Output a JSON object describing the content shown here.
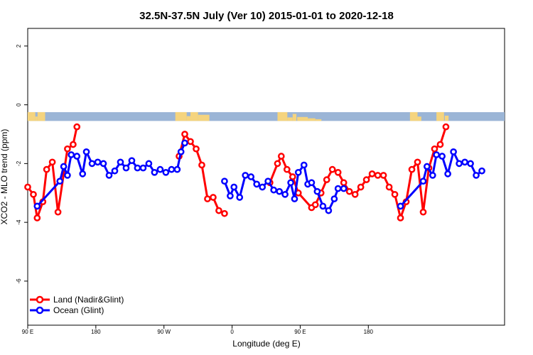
{
  "chart_data": {
    "type": "line",
    "title": "32.5N-37.5N July (Ver 10)   2015-01-01 to 2020-12-18",
    "xlabel": "Longitude (deg E)",
    "ylabel": "XCO2 - MLO trend (ppm)",
    "x_ticks": [
      "90 E",
      "180",
      "90 W",
      "0",
      "90 E",
      "180"
    ],
    "y_ticks": [
      "2",
      "0",
      "-2",
      "-4",
      "-6"
    ],
    "ylim": [
      -7.5,
      2.6
    ],
    "legend_position": "bottom-left",
    "series": [
      {
        "name": "Land (Nadir&Glint)",
        "color": "#ff0000",
        "segments": [
          [
            [
              90,
              -2.8
            ],
            [
              97.5,
              -3.05
            ],
            [
              102.5,
              -3.85
            ],
            [
              110,
              -3.3
            ],
            [
              115,
              -2.2
            ],
            [
              122.5,
              -1.95
            ],
            [
              130,
              -3.65
            ],
            [
              142.5,
              -1.5
            ],
            [
              150,
              -1.35
            ],
            [
              155,
              -0.75
            ]
          ],
          [
            [
              290,
              -1.75
            ],
            [
              297.5,
              -1.0
            ],
            [
              305,
              -1.25
            ],
            [
              312.5,
              -1.5
            ],
            [
              320,
              -2.05
            ],
            [
              327.5,
              -3.2
            ],
            [
              335,
              -3.15
            ],
            [
              342.5,
              -3.6
            ],
            [
              350,
              -3.7
            ]
          ],
          [
            [
              410,
              -2.65
            ],
            [
              420,
              -2.0
            ],
            [
              425,
              -1.75
            ],
            [
              432.5,
              -2.2
            ],
            [
              440,
              -2.45
            ],
            [
              447.5,
              -3.0
            ],
            [
              465,
              -3.5
            ],
            [
              470,
              -3.4
            ],
            [
              477.5,
              -3.0
            ],
            [
              485,
              -2.55
            ],
            [
              492.5,
              -2.2
            ],
            [
              500,
              -2.3
            ],
            [
              507.5,
              -2.65
            ],
            [
              515,
              -2.95
            ],
            [
              522.5,
              -3.05
            ],
            [
              530,
              -2.8
            ],
            [
              537.5,
              -2.55
            ],
            [
              545,
              -2.35
            ],
            [
              552.5,
              -2.4
            ],
            [
              560,
              -2.4
            ],
            [
              567.5,
              -2.8
            ],
            [
              575,
              -3.05
            ],
            [
              582.5,
              -3.85
            ],
            [
              590,
              -3.3
            ],
            [
              597.5,
              -2.2
            ],
            [
              605,
              -1.95
            ],
            [
              612.5,
              -3.65
            ],
            [
              620,
              -2.15
            ],
            [
              627.5,
              -1.5
            ],
            [
              635,
              -1.35
            ],
            [
              642.5,
              -0.75
            ]
          ]
        ]
      },
      {
        "name": "Ocean (Glint)",
        "color": "#0000ff",
        "segments": [
          [
            [
              102.5,
              -3.45
            ],
            [
              132.5,
              -2.6
            ],
            [
              137.5,
              -2.1
            ],
            [
              142.5,
              -2.4
            ],
            [
              147.5,
              -1.7
            ],
            [
              155,
              -1.75
            ],
            [
              162.5,
              -2.35
            ],
            [
              167.5,
              -1.6
            ],
            [
              175,
              -2.0
            ],
            [
              182.5,
              -1.95
            ],
            [
              190,
              -2.0
            ],
            [
              197.5,
              -2.4
            ],
            [
              205,
              -2.25
            ],
            [
              212.5,
              -1.95
            ],
            [
              220,
              -2.15
            ],
            [
              227.5,
              -1.9
            ],
            [
              235,
              -2.15
            ],
            [
              242.5,
              -2.15
            ],
            [
              250,
              -2.0
            ],
            [
              257.5,
              -2.3
            ],
            [
              265,
              -2.2
            ],
            [
              272.5,
              -2.3
            ],
            [
              280,
              -2.2
            ],
            [
              287.5,
              -2.2
            ],
            [
              292.5,
              -1.6
            ],
            [
              297.5,
              -1.3
            ]
          ],
          [
            [
              350,
              -2.6
            ],
            [
              357.5,
              -3.1
            ],
            [
              362.5,
              -2.8
            ],
            [
              370,
              -3.15
            ],
            [
              377.5,
              -2.4
            ],
            [
              385,
              -2.45
            ],
            [
              392.5,
              -2.7
            ],
            [
              400,
              -2.8
            ],
            [
              407.5,
              -2.6
            ],
            [
              415,
              -2.9
            ],
            [
              422.5,
              -2.95
            ],
            [
              430,
              -3.05
            ],
            [
              437.5,
              -2.65
            ],
            [
              442.5,
              -3.2
            ],
            [
              447.5,
              -2.3
            ],
            [
              455,
              -2.05
            ],
            [
              460,
              -2.7
            ],
            [
              465,
              -2.65
            ],
            [
              472.5,
              -2.95
            ],
            [
              480,
              -3.45
            ],
            [
              487.5,
              -3.6
            ],
            [
              495,
              -3.2
            ],
            [
              500,
              -2.85
            ],
            [
              507.5,
              -2.85
            ]
          ],
          [
            [
              582.5,
              -3.45
            ],
            [
              612.5,
              -2.6
            ],
            [
              617.5,
              -2.1
            ],
            [
              625,
              -2.4
            ],
            [
              630,
              -1.7
            ],
            [
              637.5,
              -1.75
            ],
            [
              645,
              -2.35
            ],
            [
              652.5,
              -1.6
            ],
            [
              660,
              -2.0
            ],
            [
              667.5,
              -1.95
            ],
            [
              675,
              -2.0
            ],
            [
              682.5,
              -2.4
            ],
            [
              690,
              -2.25
            ]
          ]
        ]
      }
    ],
    "land_mask_colors": {
      "land": "#f5d47e",
      "ocean": "#9bb5d6"
    }
  }
}
